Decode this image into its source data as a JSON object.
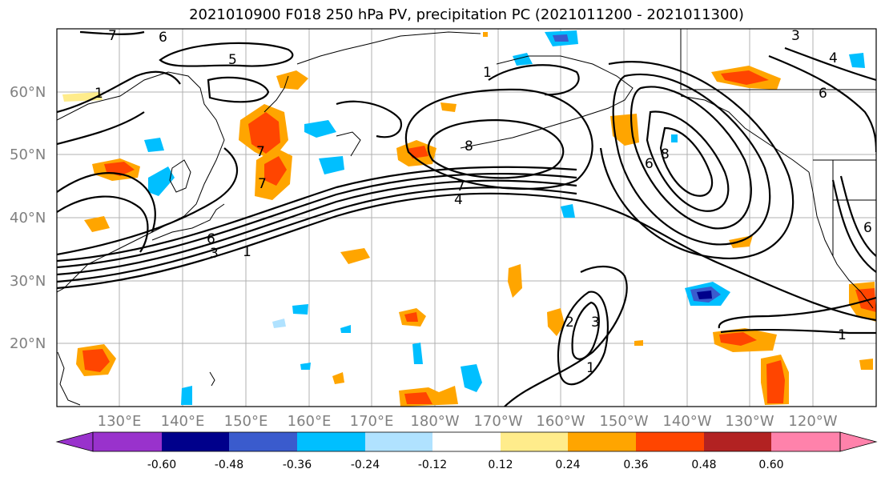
{
  "title": "2021010900 F018 250 hPa PV, precipitation PC (2021011200 - 2021011300)",
  "latitude_labels": [
    "60°N",
    "50°N",
    "40°N",
    "30°N",
    "20°N"
  ],
  "longitude_labels": [
    "130°E",
    "140°E",
    "150°E",
    "160°E",
    "170°E",
    "180°W",
    "170°W",
    "160°W",
    "150°W",
    "140°W",
    "130°W",
    "120°W"
  ],
  "colorbar": {
    "tick_labels": [
      "-0.60",
      "-0.48",
      "-0.36",
      "-0.24",
      "-0.12",
      "0.12",
      "0.24",
      "0.36",
      "0.48",
      "0.60"
    ],
    "colors": [
      "#9932cc",
      "#00008b",
      "#3a5bcd",
      "#00bfff",
      "#b0e2ff",
      "#ffffff",
      "#ffec8b",
      "#ffa500",
      "#ff4500",
      "#b22222",
      "#ff82ab"
    ]
  },
  "contour_labels": [
    "5",
    "6",
    "7",
    "7",
    "4",
    "7",
    "7",
    "6",
    "3",
    "1",
    "8",
    "6",
    "8",
    "1",
    "2",
    "3",
    "1",
    "1",
    "4",
    "3",
    "6",
    "6",
    "1"
  ]
}
